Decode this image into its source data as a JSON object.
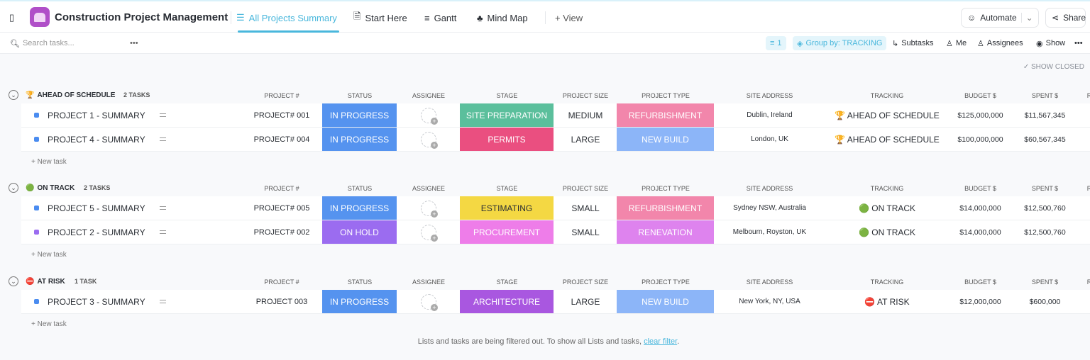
{
  "header": {
    "title": "Construction Project Management",
    "tabs": [
      {
        "label": "All Projects Summary",
        "active": true
      },
      {
        "label": "Start Here"
      },
      {
        "label": "Gantt"
      },
      {
        "label": "Mind Map"
      }
    ],
    "add_view": "+ View",
    "automate": "Automate",
    "share": "Share"
  },
  "toolbar": {
    "search_placeholder": "Search tasks...",
    "filter_count": "1",
    "group_by": "Group by: TRACKING",
    "subtasks": "Subtasks",
    "me": "Me",
    "assignees": "Assignees",
    "show": "Show",
    "show_closed": "SHOW CLOSED"
  },
  "columns": [
    "PROJECT #",
    "STATUS",
    "ASSIGNEE",
    "STAGE",
    "PROJECT SIZE",
    "PROJECT TYPE",
    "SITE ADDRESS",
    "TRACKING",
    "BUDGET $",
    "SPENT $",
    "R"
  ],
  "new_task": "+ New task",
  "groups": [
    {
      "title": "AHEAD OF SCHEDULE",
      "icon": "🏆",
      "count": "2 TASKS",
      "tasks": [
        {
          "name": "PROJECT 1 - SUMMARY",
          "dot": "#4a8cf0",
          "project": "PROJECT# 001",
          "status": "IN PROGRESS",
          "status_color": "#5593ef",
          "stage": "SITE PREPARATION",
          "stage_color": "#5bbf9c",
          "size": "MEDIUM",
          "type": "REFURBISHMENT",
          "type_color": "#f286ab",
          "site": "Dublin, Ireland",
          "tracking": "🏆 AHEAD OF SCHEDULE",
          "budget": "$125,000,000",
          "spent": "$11,567,345"
        },
        {
          "name": "PROJECT 4 - SUMMARY",
          "dot": "#4a8cf0",
          "project": "PROJECT# 004",
          "status": "IN PROGRESS",
          "status_color": "#5593ef",
          "stage": "PERMITS",
          "stage_color": "#ea4f80",
          "size": "LARGE",
          "type": "NEW BUILD",
          "type_color": "#8cb5f8",
          "site": "London, UK",
          "tracking": "🏆 AHEAD OF SCHEDULE",
          "budget": "$100,000,000",
          "spent": "$60,567,345"
        }
      ]
    },
    {
      "title": "ON TRACK",
      "icon": "🟢",
      "count": "2 TASKS",
      "tasks": [
        {
          "name": "PROJECT 5 - SUMMARY",
          "dot": "#4a8cf0",
          "project": "PROJECT# 005",
          "status": "IN PROGRESS",
          "status_color": "#5593ef",
          "stage": "ESTIMATING",
          "stage_color": "#f4d843",
          "stage_text": "#2a2e34",
          "size": "SMALL",
          "type": "REFURBISHMENT",
          "type_color": "#f286ab",
          "site": "Sydney NSW, Australia",
          "tracking": "🟢 ON TRACK",
          "budget": "$14,000,000",
          "spent": "$12,500,760"
        },
        {
          "name": "PROJECT 2 - SUMMARY",
          "dot": "#9b6cf0",
          "project": "PROJECT# 002",
          "status": "ON HOLD",
          "status_color": "#9b6cf0",
          "stage": "PROCUREMENT",
          "stage_color": "#ee7de9",
          "size": "SMALL",
          "type": "RENEVATION",
          "type_color": "#de83ee",
          "site": "Melbourn, Royston, UK",
          "tracking": "🟢 ON TRACK",
          "budget": "$14,000,000",
          "spent": "$12,500,760"
        }
      ]
    },
    {
      "title": "AT RISK",
      "icon": "⛔",
      "count": "1 TASK",
      "tasks": [
        {
          "name": "PROJECT 3 - SUMMARY",
          "dot": "#4a8cf0",
          "project": "PROJECT 003",
          "status": "IN PROGRESS",
          "status_color": "#5593ef",
          "stage": "ARCHITECTURE",
          "stage_color": "#a957e0",
          "size": "LARGE",
          "type": "NEW BUILD",
          "type_color": "#8cb5f8",
          "site": "New York, NY, USA",
          "tracking": "⛔ AT RISK",
          "budget": "$12,000,000",
          "spent": "$600,000"
        }
      ]
    }
  ],
  "footer": {
    "text": "Lists and tasks are being filtered out. To show all Lists and tasks,",
    "link": "clear filter",
    "end": "."
  }
}
